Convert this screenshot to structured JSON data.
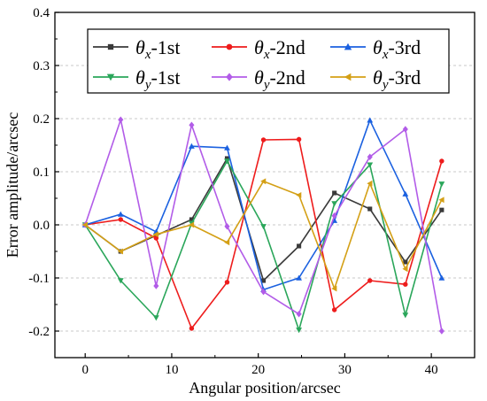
{
  "chart_data": {
    "type": "line",
    "xlabel": "Angular position/arcsec",
    "ylabel": "Error amplitude/arcsec",
    "xlim": [
      -3.5,
      45
    ],
    "ylim": [
      -0.25,
      0.4
    ],
    "xticks": [
      0,
      10,
      20,
      30,
      40
    ],
    "yticks": [
      -0.2,
      -0.1,
      0.0,
      0.1,
      0.2,
      0.3,
      0.4
    ],
    "ytick_labels": [
      "-0.2",
      "-0.1",
      "0.0",
      "0.1",
      "0.2",
      "0.3",
      "0.4"
    ],
    "grid": "horizontal dashed",
    "legend_position": "top, inside plot, 3 columns",
    "x": [
      0,
      4.1,
      8.2,
      12.3,
      16.4,
      20.6,
      24.7,
      28.8,
      32.9,
      37.0,
      41.2
    ],
    "series": [
      {
        "name": "θx-1st",
        "symbol": "θ",
        "sub": "x",
        "suffix": "-1st",
        "color": "#3a3a3a",
        "marker": "square",
        "values": [
          0.0,
          -0.05,
          -0.02,
          0.01,
          0.125,
          -0.105,
          -0.04,
          0.06,
          0.03,
          -0.07,
          0.028
        ]
      },
      {
        "name": "θx-2nd",
        "symbol": "θ",
        "sub": "x",
        "suffix": "-2nd",
        "color": "#ee1c1c",
        "marker": "circle",
        "values": [
          0.0,
          0.01,
          -0.025,
          -0.195,
          -0.108,
          0.16,
          0.161,
          -0.16,
          -0.105,
          -0.112,
          0.12
        ]
      },
      {
        "name": "θx-3rd",
        "symbol": "θ",
        "sub": "x",
        "suffix": "-3rd",
        "color": "#1b61e0",
        "marker": "triangle-up",
        "values": [
          0.0,
          0.02,
          -0.013,
          0.148,
          0.145,
          -0.122,
          -0.1,
          0.008,
          0.197,
          0.058,
          -0.1
        ]
      },
      {
        "name": "θy-1st",
        "symbol": "θ",
        "sub": "y",
        "suffix": "-1st",
        "color": "#2aa65a",
        "marker": "triangle-down",
        "values": [
          0.0,
          -0.105,
          -0.175,
          0.003,
          0.12,
          -0.003,
          -0.198,
          0.04,
          0.113,
          -0.17,
          0.077
        ]
      },
      {
        "name": "θy-2nd",
        "symbol": "θ",
        "sub": "y",
        "suffix": "-2nd",
        "color": "#b25ce8",
        "marker": "diamond",
        "values": [
          0.0,
          0.198,
          -0.115,
          0.188,
          -0.003,
          -0.126,
          -0.168,
          0.017,
          0.128,
          0.18,
          -0.2
        ]
      },
      {
        "name": "θy-3rd",
        "symbol": "θ",
        "sub": "y",
        "suffix": "-3rd",
        "color": "#d4a016",
        "marker": "triangle-left",
        "values": [
          0.0,
          -0.05,
          -0.018,
          0.0,
          -0.033,
          0.082,
          0.056,
          -0.12,
          0.078,
          -0.083,
          0.047
        ]
      }
    ]
  }
}
